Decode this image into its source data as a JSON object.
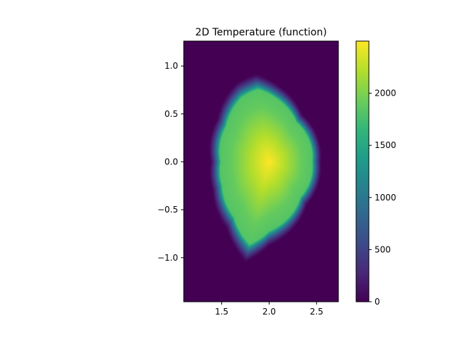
{
  "chart_data": {
    "type": "heatmap",
    "title": "2D Temperature (function)",
    "xlabel": "",
    "ylabel": "",
    "xlim": [
      1.1,
      2.73
    ],
    "ylim": [
      -1.46,
      1.26
    ],
    "x_ticks": [
      1.5,
      2.0,
      2.5
    ],
    "x_tick_labels": [
      "1.5",
      "2.0",
      "2.5"
    ],
    "y_ticks": [
      -1.0,
      -0.5,
      0.0,
      0.5,
      1.0
    ],
    "y_tick_labels": [
      "−1.0",
      "−0.5",
      "0.0",
      "0.5",
      "1.0"
    ],
    "colormap": "viridis",
    "colorbar": {
      "range": [
        0,
        2500
      ],
      "ticks": [
        0,
        500,
        1000,
        1500,
        2000
      ],
      "tick_labels": [
        "0",
        "500",
        "1000",
        "1500",
        "2000"
      ]
    },
    "field": {
      "description_units": "temperature",
      "background_value": 0,
      "peak_value": 2500,
      "peak_location": [
        2.0,
        0.0
      ],
      "boundary_value": 1000,
      "shape": "D-shaped plasma cross-section",
      "boundary_points": [
        [
          1.38,
          0.0
        ],
        [
          1.45,
          0.45
        ],
        [
          1.65,
          0.82
        ],
        [
          1.86,
          0.92
        ],
        [
          2.1,
          0.8
        ],
        [
          2.35,
          0.5
        ],
        [
          2.55,
          0.0
        ],
        [
          2.4,
          -0.45
        ],
        [
          2.0,
          -0.88
        ],
        [
          1.75,
          -1.05
        ],
        [
          1.55,
          -0.7
        ],
        [
          1.4,
          -0.3
        ]
      ]
    },
    "grid": false,
    "legend": "none"
  }
}
